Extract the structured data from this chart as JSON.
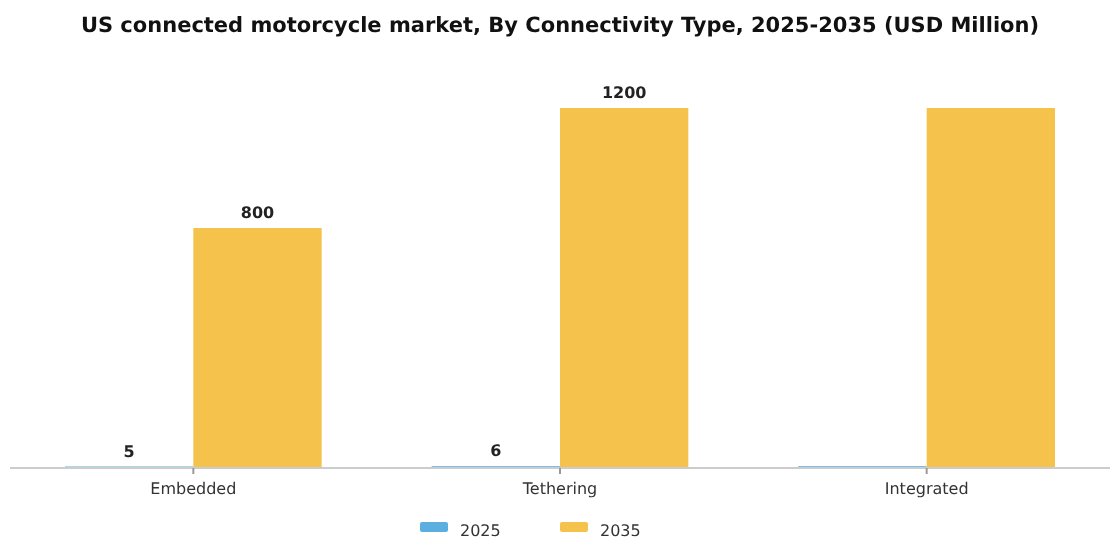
{
  "chart_data": {
    "type": "bar",
    "title": "US connected motorcycle market, By Connectivity Type, 2025-2035 (USD Million)",
    "categories": [
      "Embedded",
      "Tethering",
      "Integrated"
    ],
    "series": [
      {
        "name": "2025",
        "color": "#5aaee0",
        "values": [
          5,
          6,
          6
        ],
        "value_labels": [
          "5",
          "6",
          null
        ]
      },
      {
        "name": "2035",
        "color": "#f5c24c",
        "values": [
          800,
          1200,
          1200
        ],
        "value_labels": [
          "800",
          "1200",
          null
        ]
      }
    ],
    "legend": "bottom"
  }
}
